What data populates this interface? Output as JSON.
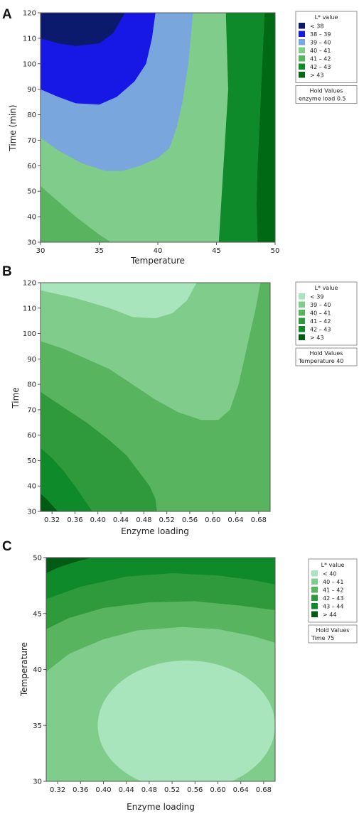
{
  "chart_data": [
    {
      "type": "contour",
      "panel_label": "A",
      "xlabel": "Temperature",
      "ylabel": "Time (min)",
      "xlim": [
        30,
        50
      ],
      "ylim": [
        30,
        120
      ],
      "x_ticks": [
        "30",
        "35",
        "40",
        "45",
        "50"
      ],
      "y_ticks": [
        "30",
        "40",
        "50",
        "60",
        "70",
        "80",
        "90",
        "100",
        "110",
        "120"
      ],
      "legend": {
        "title": "L* value",
        "entries": [
          {
            "label": "< 38",
            "color": "#0c1a6e"
          },
          {
            "label": "38 – 39",
            "color": "#1818e6"
          },
          {
            "label": "39 – 40",
            "color": "#7aa6de"
          },
          {
            "label": "40 – 41",
            "color": "#80cc8a"
          },
          {
            "label": "41 – 42",
            "color": "#58b45e"
          },
          {
            "label": "42 – 43",
            "color": "#0f8a2a"
          },
          {
            "label": "> 43",
            "color": "#006914"
          }
        ]
      },
      "hold_values": {
        "title": "Hold Values",
        "items": [
          "enzyme load 0.5"
        ]
      },
      "regions": [
        {
          "level": "41 – 42",
          "polygon": [
            [
              30,
              30
            ],
            [
              50,
              30
            ],
            [
              50,
              120
            ],
            [
              30,
              120
            ]
          ]
        },
        {
          "level": "40 – 41",
          "polygon": [
            [
              30,
              120
            ],
            [
              30,
              52
            ],
            [
              31.5,
              46
            ],
            [
              33,
              40
            ],
            [
              35,
              33
            ],
            [
              36,
              30
            ],
            [
              45.2,
              30
            ],
            [
              45.6,
              38
            ],
            [
              46.2,
              50
            ],
            [
              46.8,
              62
            ],
            [
              47.2,
              75
            ],
            [
              47.6,
              90
            ],
            [
              47.9,
              105
            ],
            [
              48,
              120
            ]
          ]
        },
        {
          "level": "39 – 40",
          "polygon": [
            [
              30,
              120
            ],
            [
              30,
              71
            ],
            [
              31.5,
              66
            ],
            [
              33.5,
              61
            ],
            [
              35.5,
              58
            ],
            [
              37,
              58
            ],
            [
              38.5,
              60
            ],
            [
              40,
              63
            ],
            [
              41,
              67
            ],
            [
              41.6,
              75
            ],
            [
              42.1,
              85
            ],
            [
              42.6,
              100
            ],
            [
              43,
              120
            ]
          ]
        },
        {
          "level": "38 – 39",
          "polygon": [
            [
              30,
              120
            ],
            [
              30,
              90
            ],
            [
              31.5,
              87
            ],
            [
              33,
              84.5
            ],
            [
              35,
              84
            ],
            [
              36.5,
              87
            ],
            [
              38,
              93
            ],
            [
              39,
              100
            ],
            [
              39.5,
              110
            ],
            [
              39.8,
              120
            ]
          ]
        },
        {
          "level": "< 38",
          "polygon": [
            [
              30,
              120
            ],
            [
              30,
              110
            ],
            [
              31.5,
              108
            ],
            [
              33,
              107
            ],
            [
              35,
              108
            ],
            [
              36.2,
              112
            ],
            [
              37.2,
              120
            ]
          ]
        },
        {
          "level": "42 – 43",
          "polygon": [
            [
              45.2,
              30
            ],
            [
              48.5,
              30
            ],
            [
              48.4,
              45
            ],
            [
              48.5,
              60
            ],
            [
              48.7,
              80
            ],
            [
              48.9,
              100
            ],
            [
              49.1,
              120
            ],
            [
              45.8,
              120
            ],
            [
              45.9,
              105
            ],
            [
              46,
              90
            ],
            [
              45.8,
              75
            ],
            [
              45.6,
              60
            ],
            [
              45.4,
              45
            ]
          ]
        },
        {
          "level": "> 43",
          "polygon": [
            [
              48.5,
              30
            ],
            [
              50,
              30
            ],
            [
              50,
              120
            ],
            [
              49.1,
              120
            ],
            [
              48.9,
              100
            ],
            [
              48.7,
              80
            ],
            [
              48.5,
              60
            ],
            [
              48.4,
              45
            ]
          ]
        }
      ]
    },
    {
      "type": "contour",
      "panel_label": "B",
      "xlabel": "Enzyme loading",
      "ylabel": "Time",
      "xlim": [
        0.3,
        0.7
      ],
      "ylim": [
        30,
        120
      ],
      "x_ticks": [
        "0.32",
        "0.36",
        "0.40",
        "0.44",
        "0.48",
        "0.52",
        "0.56",
        "0.60",
        "0.64",
        "0.68"
      ],
      "x_tick_values": [
        0.32,
        0.36,
        0.4,
        0.44,
        0.48,
        0.52,
        0.56,
        0.6,
        0.64,
        0.68
      ],
      "y_ticks": [
        "30",
        "40",
        "50",
        "60",
        "70",
        "80",
        "90",
        "100",
        "110",
        "120"
      ],
      "legend": {
        "title": "L* value",
        "entries": [
          {
            "label": "< 39",
            "color": "#a8e4bc"
          },
          {
            "label": "39 – 40",
            "color": "#80cc8a"
          },
          {
            "label": "40 – 41",
            "color": "#58b45e"
          },
          {
            "label": "41 – 42",
            "color": "#2e9a3c"
          },
          {
            "label": "42 – 43",
            "color": "#0f8a2a"
          },
          {
            "label": "> 43",
            "color": "#005c12"
          }
        ]
      },
      "hold_values": {
        "title": "Hold Values",
        "items": [
          "Temperature 40"
        ]
      },
      "regions": [
        {
          "level": "40 – 41",
          "polygon": [
            [
              0.3,
              30
            ],
            [
              0.7,
              30
            ],
            [
              0.7,
              120
            ],
            [
              0.3,
              120
            ]
          ]
        },
        {
          "level": "39 – 40",
          "polygon": [
            [
              0.3,
              120
            ],
            [
              0.3,
              97
            ],
            [
              0.34,
              94
            ],
            [
              0.38,
              90
            ],
            [
              0.42,
              86
            ],
            [
              0.46,
              80
            ],
            [
              0.5,
              74
            ],
            [
              0.54,
              69
            ],
            [
              0.58,
              66
            ],
            [
              0.61,
              66
            ],
            [
              0.63,
              70
            ],
            [
              0.645,
              80
            ],
            [
              0.66,
              95
            ],
            [
              0.675,
              110
            ],
            [
              0.683,
              120
            ]
          ]
        },
        {
          "level": "< 39",
          "polygon": [
            [
              0.3,
              120
            ],
            [
              0.3,
              117
            ],
            [
              0.36,
              114
            ],
            [
              0.42,
              110
            ],
            [
              0.46,
              106.5
            ],
            [
              0.5,
              106
            ],
            [
              0.53,
              108
            ],
            [
              0.555,
              113
            ],
            [
              0.572,
              120
            ]
          ]
        },
        {
          "level": "41 – 42",
          "polygon": [
            [
              0.3,
              30
            ],
            [
              0.3,
              77
            ],
            [
              0.34,
              71
            ],
            [
              0.38,
              65
            ],
            [
              0.42,
              58
            ],
            [
              0.45,
              52
            ],
            [
              0.47,
              46
            ],
            [
              0.49,
              40
            ],
            [
              0.5,
              35
            ],
            [
              0.503,
              30
            ]
          ]
        },
        {
          "level": "42 – 43",
          "polygon": [
            [
              0.3,
              30
            ],
            [
              0.3,
              55
            ],
            [
              0.32,
              51
            ],
            [
              0.34,
              46
            ],
            [
              0.36,
              40
            ],
            [
              0.375,
              35
            ],
            [
              0.39,
              30
            ]
          ]
        },
        {
          "level": "> 43",
          "polygon": [
            [
              0.3,
              30
            ],
            [
              0.3,
              37
            ],
            [
              0.31,
              35
            ],
            [
              0.32,
              32.5
            ],
            [
              0.33,
              30
            ]
          ]
        }
      ]
    },
    {
      "type": "contour",
      "panel_label": "C",
      "xlabel": "Enzyme loading",
      "ylabel": "Temperature",
      "xlim": [
        0.3,
        0.7
      ],
      "ylim": [
        30,
        50
      ],
      "x_ticks": [
        "0.32",
        "0.36",
        "0.40",
        "0.44",
        "0.48",
        "0.52",
        "0.56",
        "0.60",
        "0.64",
        "0.68"
      ],
      "x_tick_values": [
        0.32,
        0.36,
        0.4,
        0.44,
        0.48,
        0.52,
        0.56,
        0.6,
        0.64,
        0.68
      ],
      "y_ticks": [
        "30",
        "35",
        "40",
        "45",
        "50"
      ],
      "y_tick_values": [
        30,
        35,
        40,
        45,
        50
      ],
      "legend": {
        "title": "L* value",
        "entries": [
          {
            "label": "< 40",
            "color": "#a8e4bc"
          },
          {
            "label": "40 – 41",
            "color": "#80cc8a"
          },
          {
            "label": "41 – 42",
            "color": "#58b45e"
          },
          {
            "label": "42 – 43",
            "color": "#2e9a3c"
          },
          {
            "label": "43 – 44",
            "color": "#0f8a2a"
          },
          {
            "label": "> 44",
            "color": "#005c12"
          }
        ]
      },
      "hold_values": {
        "title": "Hold Values",
        "items": [
          "Time 75"
        ]
      },
      "regions": [
        {
          "level": "40 – 41",
          "polygon": [
            [
              0.3,
              30
            ],
            [
              0.7,
              30
            ],
            [
              0.7,
              50
            ],
            [
              0.3,
              50
            ]
          ]
        },
        {
          "level": "41 – 42",
          "polygon": [
            [
              0.3,
              50
            ],
            [
              0.3,
              39.8
            ],
            [
              0.34,
              41.4
            ],
            [
              0.4,
              42.7
            ],
            [
              0.46,
              43.5
            ],
            [
              0.54,
              43.8
            ],
            [
              0.6,
              43.6
            ],
            [
              0.66,
              43
            ],
            [
              0.7,
              42.4
            ],
            [
              0.7,
              50
            ]
          ]
        },
        {
          "level": "42 – 43",
          "polygon": [
            [
              0.3,
              50
            ],
            [
              0.3,
              43.6
            ],
            [
              0.34,
              44.6
            ],
            [
              0.4,
              45.5
            ],
            [
              0.48,
              46
            ],
            [
              0.56,
              46.1
            ],
            [
              0.64,
              45.7
            ],
            [
              0.7,
              45.3
            ],
            [
              0.7,
              50
            ]
          ]
        },
        {
          "level": "43 – 44",
          "polygon": [
            [
              0.3,
              50
            ],
            [
              0.3,
              46.3
            ],
            [
              0.36,
              47.4
            ],
            [
              0.44,
              48.3
            ],
            [
              0.52,
              48.6
            ],
            [
              0.6,
              48.4
            ],
            [
              0.66,
              48
            ],
            [
              0.7,
              47.6
            ],
            [
              0.7,
              50
            ]
          ]
        },
        {
          "level": "> 44",
          "polygon": [
            [
              0.3,
              50
            ],
            [
              0.3,
              48.6
            ],
            [
              0.32,
              49.1
            ],
            [
              0.35,
              49.6
            ],
            [
              0.38,
              50
            ]
          ]
        }
      ],
      "ellipse": {
        "level": "< 40",
        "cx": 0.545,
        "cy": 35,
        "rx": 0.155,
        "ry": 5.8
      }
    }
  ]
}
